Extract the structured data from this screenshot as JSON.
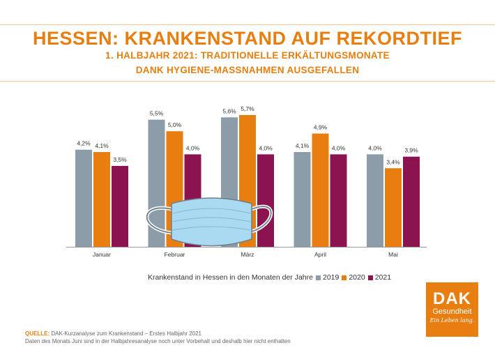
{
  "header": {
    "title": "HESSEN: KRANKENSTAND AUF REKORDTIEF",
    "subtitle_line1": "1. HALBJAHR 2021: TRADITIONELLE ERKÄLTUNGSMONATE",
    "subtitle_line2": "DANK HYGIENE-MASSNAHMEN AUSGEFALLEN"
  },
  "chart_data": {
    "type": "bar",
    "categories": [
      "Januar",
      "Februar",
      "März",
      "April",
      "Mai"
    ],
    "series": [
      {
        "name": "2019",
        "color": "#8c9ca8",
        "values": [
          4.2,
          5.5,
          5.6,
          4.1,
          4.0
        ],
        "labels": [
          "4,2%",
          "5,5%",
          "5,6%",
          "4,1%",
          "4,0%"
        ]
      },
      {
        "name": "2020",
        "color": "#e87e0f",
        "values": [
          4.1,
          5.0,
          5.7,
          4.9,
          3.4
        ],
        "labels": [
          "4,1%",
          "5,0%",
          "5,7%",
          "4,9%",
          "3,4%"
        ]
      },
      {
        "name": "2021",
        "color": "#8b1450",
        "values": [
          3.5,
          4.0,
          4.0,
          4.0,
          3.9
        ],
        "labels": [
          "3,5%",
          "4,0%",
          "4,0%",
          "4,0%",
          "3,9%"
        ]
      }
    ],
    "ylim": [
      0,
      5.7
    ],
    "grid": false,
    "legend_title": "Krankenstand in Hessen in den Monaten der Jahre",
    "legend_position": "bottom"
  },
  "footer": {
    "source_label": "QUELLE:",
    "source_text": "DAK-Kurzanalyse zum Krankenstand – Erstes Halbjahr 2021",
    "note": "Daten des Monats Juni sind in der Halbjahresanalyse noch unter Vorbehalt und deshalb hier nicht enthalten"
  },
  "logo": {
    "brand": "DAK",
    "name": "Gesundheit",
    "slogan": "Ein Leben lang."
  }
}
